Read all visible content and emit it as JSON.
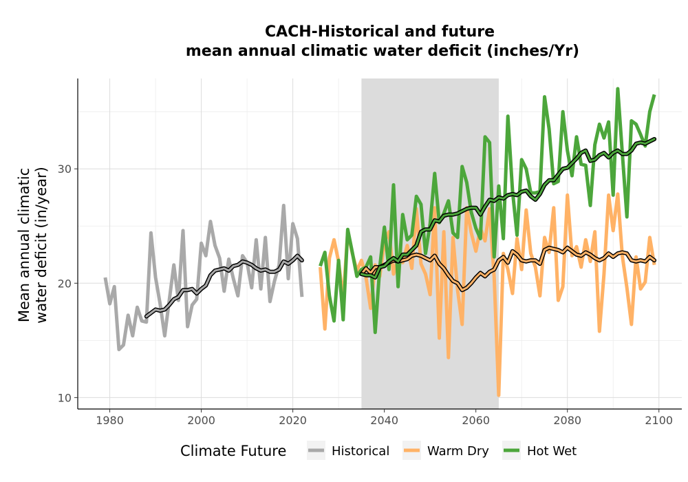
{
  "chart_data": {
    "type": "line",
    "title": [
      "CACH-Historical and future",
      "mean annual climatic water deficit (inches/Yr)"
    ],
    "xlabel": "",
    "ylabel": [
      "Mean annual climatic",
      "water deficit (in/year)"
    ],
    "xlim": [
      1973,
      2105
    ],
    "ylim": [
      9.0,
      37.9
    ],
    "xticks": [
      1980,
      2000,
      2020,
      2040,
      2060,
      2080,
      2100
    ],
    "yticks": [
      10,
      20,
      30
    ],
    "grid": true,
    "shaded_period": [
      2035,
      2065
    ],
    "legend": {
      "title": "Climate Future",
      "position": "bottom",
      "entries": [
        "Historical",
        "Warm Dry",
        "Hot Wet"
      ]
    },
    "colors": {
      "Historical": "#A9A9A9",
      "Warm Dry": "#FFB266",
      "Hot Wet": "#4CA63B",
      "shade": "#DCDCDC",
      "smooth": "#000000"
    },
    "series": [
      {
        "name": "Historical",
        "x": [
          1979,
          1980,
          1981,
          1982,
          1983,
          1984,
          1985,
          1986,
          1987,
          1988,
          1989,
          1990,
          1991,
          1992,
          1993,
          1994,
          1995,
          1996,
          1997,
          1998,
          1999,
          2000,
          2001,
          2002,
          2003,
          2004,
          2005,
          2006,
          2007,
          2008,
          2009,
          2010,
          2011,
          2012,
          2013,
          2014,
          2015,
          2016,
          2017,
          2018,
          2019,
          2020,
          2021,
          2022
        ],
        "y": [
          20.5,
          18.2,
          19.7,
          14.2,
          14.6,
          17.2,
          15.4,
          17.9,
          16.7,
          16.6,
          24.4,
          20.5,
          18.2,
          15.4,
          18.5,
          21.6,
          18.5,
          24.6,
          16.2,
          18.1,
          18.6,
          23.5,
          22.4,
          25.4,
          23.3,
          22.2,
          19.3,
          22.1,
          20.4,
          18.9,
          22.4,
          21.8,
          19.6,
          23.8,
          19.5,
          24.0,
          18.4,
          20.2,
          21.6,
          26.8,
          20.4,
          25.2,
          23.9,
          18.8
        ]
      },
      {
        "name": "Historical (smoothed)",
        "x": [
          1988,
          1989,
          1990,
          1991,
          1992,
          1993,
          1994,
          1995,
          1996,
          1997,
          1998,
          1999,
          2000,
          2001,
          2002,
          2003,
          2004,
          2005,
          2006,
          2007,
          2008,
          2009,
          2010,
          2011,
          2012,
          2013,
          2014,
          2015,
          2016,
          2017,
          2018,
          2019,
          2020,
          2021,
          2022
        ],
        "y": [
          17.1,
          17.4,
          17.7,
          17.6,
          17.7,
          18.1,
          18.6,
          18.8,
          19.4,
          19.4,
          19.5,
          19.1,
          19.5,
          19.8,
          20.7,
          21.1,
          21.2,
          21.3,
          21.1,
          21.5,
          21.6,
          21.9,
          21.8,
          21.6,
          21.3,
          21.1,
          21.2,
          21.0,
          21.0,
          21.2,
          21.9,
          21.7,
          22.0,
          22.4,
          22.0
        ]
      },
      {
        "name": "Warm Dry",
        "x": [
          2026,
          2027,
          2028,
          2029,
          2030,
          2031,
          2032,
          2033,
          2034,
          2035,
          2036,
          2037,
          2038,
          2039,
          2040,
          2041,
          2042,
          2043,
          2044,
          2045,
          2046,
          2047,
          2048,
          2049,
          2050,
          2051,
          2052,
          2053,
          2054,
          2055,
          2056,
          2057,
          2058,
          2059,
          2060,
          2061,
          2062,
          2063,
          2064,
          2065,
          2066,
          2067,
          2068,
          2069,
          2070,
          2071,
          2072,
          2073,
          2074,
          2075,
          2076,
          2077,
          2078,
          2079,
          2080,
          2081,
          2082,
          2083,
          2084,
          2085,
          2086,
          2087,
          2088,
          2089,
          2090,
          2091,
          2092,
          2093,
          2094,
          2095,
          2096,
          2097,
          2098,
          2099
        ],
        "y": [
          21.4,
          16.0,
          22.2,
          23.8,
          21.9,
          18.5,
          24.5,
          22.6,
          21.1,
          22.0,
          20.5,
          17.8,
          21.6,
          20.6,
          23.6,
          24.5,
          20.8,
          22.2,
          21.8,
          23.3,
          21.3,
          26.5,
          21.7,
          20.8,
          19.0,
          26.6,
          15.2,
          24.5,
          13.5,
          24.0,
          19.4,
          16.4,
          26.6,
          24.4,
          22.8,
          24.8,
          23.7,
          26.5,
          20.5,
          10.2,
          22.6,
          21.2,
          19.1,
          23.9,
          21.2,
          26.4,
          22.6,
          21.4,
          18.9,
          24.0,
          22.7,
          26.6,
          18.5,
          19.7,
          27.7,
          22.4,
          23.2,
          21.4,
          23.8,
          21.9,
          24.5,
          15.8,
          20.8,
          27.7,
          24.6,
          27.8,
          22.4,
          19.6,
          16.4,
          22.3,
          19.5,
          20.1,
          24.0,
          21.6
        ]
      },
      {
        "name": "Warm Dry (smoothed)",
        "x": [
          2035,
          2036,
          2037,
          2038,
          2039,
          2040,
          2041,
          2042,
          2043,
          2044,
          2045,
          2046,
          2047,
          2048,
          2049,
          2050,
          2051,
          2052,
          2053,
          2054,
          2055,
          2056,
          2057,
          2058,
          2059,
          2060,
          2061,
          2062,
          2063,
          2064,
          2065,
          2066,
          2067,
          2068,
          2069,
          2070,
          2071,
          2072,
          2073,
          2074,
          2075,
          2076,
          2077,
          2078,
          2079,
          2080,
          2081,
          2082,
          2083,
          2084,
          2085,
          2086,
          2087,
          2088,
          2089,
          2090,
          2091,
          2092,
          2093,
          2094,
          2095,
          2096,
          2097,
          2098,
          2099
        ],
        "y": [
          20.8,
          21.3,
          20.9,
          21.4,
          21.4,
          21.6,
          21.8,
          22.0,
          21.9,
          22.0,
          22.1,
          22.4,
          22.5,
          22.4,
          22.2,
          22.0,
          22.4,
          21.7,
          21.3,
          20.7,
          20.2,
          20.0,
          19.4,
          19.6,
          20.0,
          20.5,
          20.9,
          20.6,
          21.0,
          21.2,
          22.0,
          22.3,
          21.8,
          22.8,
          22.5,
          22.0,
          21.9,
          22.0,
          22.0,
          21.7,
          22.9,
          23.1,
          23.0,
          22.9,
          22.7,
          23.1,
          22.8,
          22.5,
          22.4,
          22.7,
          22.5,
          22.2,
          22.0,
          22.2,
          22.6,
          22.3,
          22.6,
          22.7,
          22.6,
          22.0,
          21.9,
          22.0,
          21.9,
          22.3,
          22.0
        ]
      },
      {
        "name": "Hot Wet",
        "x": [
          2026,
          2027,
          2028,
          2029,
          2030,
          2031,
          2032,
          2033,
          2034,
          2035,
          2036,
          2037,
          2038,
          2039,
          2040,
          2041,
          2042,
          2043,
          2044,
          2045,
          2046,
          2047,
          2048,
          2049,
          2050,
          2051,
          2052,
          2053,
          2054,
          2055,
          2056,
          2057,
          2058,
          2059,
          2060,
          2061,
          2062,
          2063,
          2064,
          2065,
          2066,
          2067,
          2068,
          2069,
          2070,
          2071,
          2072,
          2073,
          2074,
          2075,
          2076,
          2077,
          2078,
          2079,
          2080,
          2081,
          2082,
          2083,
          2084,
          2085,
          2086,
          2087,
          2088,
          2089,
          2090,
          2091,
          2092,
          2093,
          2094,
          2095,
          2096,
          2097,
          2098,
          2099
        ],
        "y": [
          21.5,
          22.7,
          18.9,
          16.7,
          22.0,
          16.8,
          24.7,
          22.7,
          20.6,
          21.2,
          21.4,
          22.3,
          15.7,
          21.4,
          24.9,
          21.2,
          28.6,
          19.7,
          26.0,
          23.8,
          24.2,
          27.6,
          26.9,
          22.6,
          25.2,
          29.6,
          25.3,
          26.1,
          27.2,
          24.4,
          24.0,
          30.2,
          28.8,
          26.2,
          24.8,
          23.9,
          32.8,
          32.3,
          22.3,
          28.5,
          23.9,
          34.6,
          28.1,
          24.2,
          30.8,
          30.0,
          27.9,
          27.9,
          28.0,
          36.3,
          33.5,
          28.7,
          28.9,
          35.0,
          31.6,
          29.4,
          32.8,
          30.4,
          30.3,
          26.8,
          32.1,
          33.9,
          32.7,
          34.1,
          27.7,
          37.0,
          31.4,
          25.8,
          34.2,
          33.9,
          33.0,
          32.0,
          35.0,
          36.5
        ]
      },
      {
        "name": "Hot Wet (smoothed)",
        "x": [
          2035,
          2036,
          2037,
          2038,
          2039,
          2040,
          2041,
          2042,
          2043,
          2044,
          2045,
          2046,
          2047,
          2048,
          2049,
          2050,
          2051,
          2052,
          2053,
          2054,
          2055,
          2056,
          2057,
          2058,
          2059,
          2060,
          2061,
          2062,
          2063,
          2064,
          2065,
          2066,
          2067,
          2068,
          2069,
          2070,
          2071,
          2072,
          2073,
          2074,
          2075,
          2076,
          2077,
          2078,
          2079,
          2080,
          2081,
          2082,
          2083,
          2084,
          2085,
          2086,
          2087,
          2088,
          2089,
          2090,
          2091,
          2092,
          2093,
          2094,
          2095,
          2096,
          2097,
          2098,
          2099
        ],
        "y": [
          20.8,
          20.7,
          20.7,
          20.5,
          21.4,
          21.5,
          21.9,
          22.2,
          21.9,
          22.5,
          22.5,
          22.9,
          23.3,
          24.5,
          24.7,
          24.7,
          25.5,
          25.4,
          25.9,
          26.0,
          26.0,
          26.1,
          26.3,
          26.5,
          26.6,
          26.6,
          26.0,
          26.7,
          27.3,
          27.2,
          27.5,
          27.4,
          27.7,
          27.8,
          27.7,
          28.0,
          28.1,
          27.6,
          27.3,
          27.8,
          28.6,
          29.0,
          29.0,
          29.5,
          30.0,
          30.1,
          30.5,
          30.9,
          31.4,
          31.6,
          30.7,
          30.8,
          31.2,
          31.4,
          31.0,
          31.4,
          31.6,
          31.3,
          31.3,
          31.6,
          32.2,
          32.3,
          32.2,
          32.4,
          32.6
        ]
      }
    ]
  }
}
